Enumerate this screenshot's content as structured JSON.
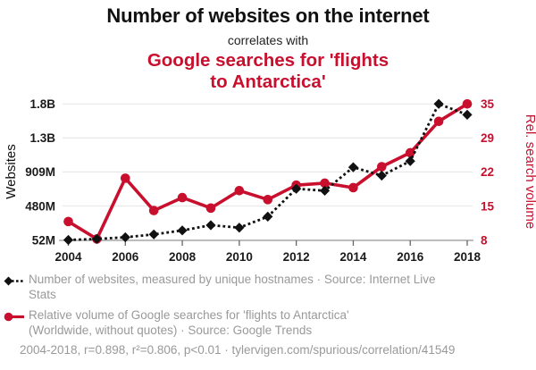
{
  "header": {
    "title": "Number of websites on the internet",
    "connector": "correlates with",
    "title2_line1": "Google searches for 'flights",
    "title2_line2": "to Antarctica'"
  },
  "colors": {
    "accent_red": "#c8102e",
    "series_black": "#111111",
    "legend_gray": "#999999",
    "gridline": "#e8e8e8",
    "axis_line": "#9a9a9a",
    "tick_label": "#1a1a1a"
  },
  "chart_data": {
    "type": "line",
    "title": "Number of websites on the internet correlates with Google searches for 'flights to Antarctica'",
    "x": [
      2004,
      2005,
      2006,
      2007,
      2008,
      2009,
      2010,
      2011,
      2012,
      2013,
      2014,
      2015,
      2016,
      2017,
      2018
    ],
    "x_ticks": [
      2004,
      2006,
      2008,
      2010,
      2012,
      2014,
      2016,
      2018
    ],
    "grid": true,
    "series": [
      {
        "name": "Number of websites",
        "axis": "left",
        "color": "#c8102e-NOT",
        "units": "millions",
        "marker": "diamond",
        "line_style": "dotted",
        "values": [
          51.6,
          64.8,
          85.5,
          121.9,
          172.3,
          238.0,
          206.9,
          346.0,
          697.1,
          673.0,
          968.9,
          863.1,
          1045.5,
          1766.9,
          1630.3
        ]
      },
      {
        "name": "Google searches for 'flights to Antarctica'",
        "axis": "right",
        "units": "relative search volume",
        "marker": "circle",
        "line_style": "solid",
        "values": [
          11.7,
          8.2,
          20.4,
          13.9,
          16.5,
          14.4,
          17.9,
          16.1,
          19.0,
          19.4,
          18.5,
          22.7,
          25.5,
          31.8,
          35.3
        ]
      }
    ],
    "left_axis": {
      "label": "Websites",
      "tick_labels": [
        "1.8B",
        "1.3B",
        "909M",
        "480M",
        "52M"
      ],
      "tick_values_millions": [
        1766.6,
        1338.0,
        909.3,
        480.7,
        52.0
      ],
      "min_millions": 52.0,
      "max_millions": 1766.6
    },
    "right_axis": {
      "label": "Rel. search volume",
      "tick_labels": [
        "35",
        "29",
        "22",
        "15",
        "8"
      ],
      "tick_values": [
        35,
        29,
        22,
        15,
        8
      ],
      "min": 8,
      "max": 35.3
    }
  },
  "legend": {
    "series1": {
      "line1": "Number of websites, measured by unique hostnames · Source: Internet Live",
      "line2": "Stats"
    },
    "series2": {
      "line1": "Relative volume of Google searches for 'flights to Antarctica'",
      "line2": "(Worldwide, without quotes) · Source: Google Trends"
    }
  },
  "footer": {
    "text": "2004-2018, r=0.898, r²=0.806, p<0.01 · tylervigen.com/spurious/correlation/41549"
  }
}
